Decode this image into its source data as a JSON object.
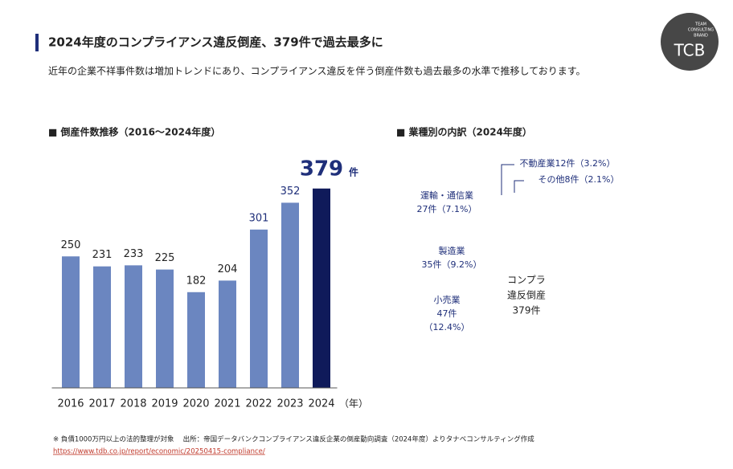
{
  "header": {
    "title": "2024年度のコンプライアンス違反倒産、379件で過去最多に",
    "subtitle": "近年の企業不祥事件数は増加トレンドにあり、コンプライアンス違反を伴う倒産件数も過去最多の水準で推移しております。"
  },
  "logo": {
    "lines": [
      "TEAM",
      "CONSULTING",
      "BRAND"
    ],
    "mark": "TCB"
  },
  "chart_data": {
    "type": "bar",
    "title": "■ 倒産件数推移（2016～2024年度）",
    "categories": [
      "2016",
      "2017",
      "2018",
      "2019",
      "2020",
      "2021",
      "2022",
      "2023",
      "2024"
    ],
    "values": [
      250,
      231,
      233,
      225,
      182,
      204,
      301,
      352,
      379
    ],
    "colors": [
      "#6b86c0",
      "#6b86c0",
      "#6b86c0",
      "#6b86c0",
      "#6b86c0",
      "#6b86c0",
      "#6b86c0",
      "#6b86c0",
      "#0f1a5a"
    ],
    "label_colors": [
      "#222222",
      "#222222",
      "#222222",
      "#222222",
      "#222222",
      "#222222",
      "#1f2f7a",
      "#1f2f7a",
      "#1f2f7a"
    ],
    "last_value_unit": "件",
    "x_unit": "（年）",
    "ylim": [
      0,
      400
    ]
  },
  "breakdown": {
    "title": "■ 業種別の内訳（2024年度）",
    "items": [
      {
        "lines": [
          "不動産業12件（3.2%）"
        ]
      },
      {
        "lines": [
          "その他8件（2.1%）"
        ]
      },
      {
        "lines": [
          "運輸・通信業",
          "27件（7.1%）"
        ]
      },
      {
        "lines": [
          "製造業",
          "35件（9.2%）"
        ]
      },
      {
        "lines": [
          "小売業",
          "47件",
          "（12.4%）"
        ]
      }
    ],
    "center": [
      "コンプラ",
      "違反倒産",
      "379件"
    ]
  },
  "footer": {
    "note": "※ 負債1000万円以上の法的整理が対象　 出所：帝国データバンクコンプライアンス違反企業の倒産動向調査（2024年度）よりタナベコンサルティング作成",
    "link": "https://www.tdb.co.jp/report/economic/20250415-compliance/"
  }
}
